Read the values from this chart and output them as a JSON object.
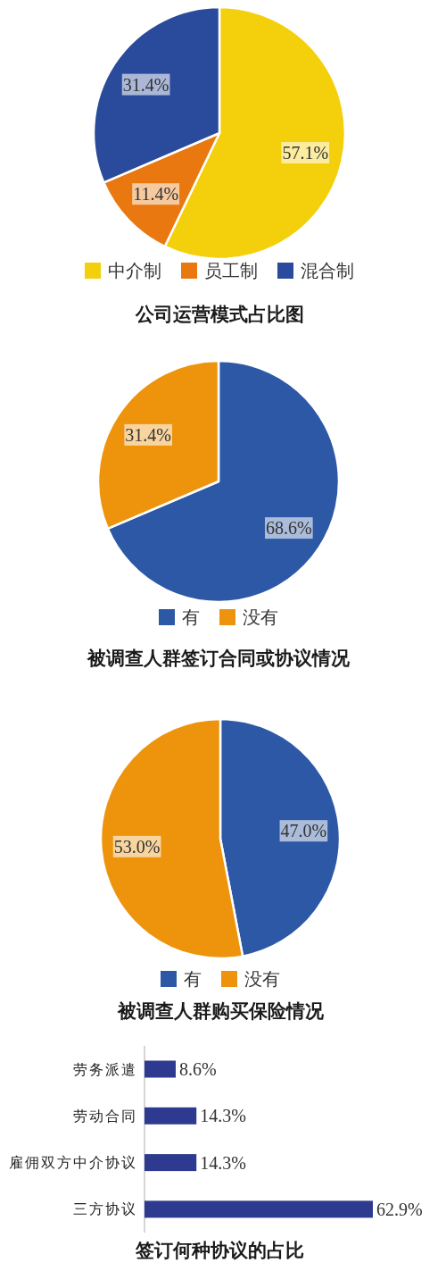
{
  "chart_data": [
    {
      "type": "pie",
      "title": "公司运营模式占比图",
      "categories": [
        "中介制",
        "员工制",
        "混合制"
      ],
      "values": [
        57.1,
        11.4,
        31.4
      ],
      "colors": [
        "#f4d00c",
        "#e8780f",
        "#2a4b9b"
      ],
      "value_labels": [
        "57.1%",
        "11.4%",
        "31.4%"
      ],
      "legend": "bottom"
    },
    {
      "type": "pie",
      "title": "被调查人群签订合同或协议情况",
      "categories": [
        "有",
        "没有"
      ],
      "values": [
        68.6,
        31.4
      ],
      "colors": [
        "#2d58a6",
        "#ee940c"
      ],
      "value_labels": [
        "68.6%",
        "31.4%"
      ],
      "legend": "bottom"
    },
    {
      "type": "pie",
      "title": "被调查人群购买保险情况",
      "categories": [
        "有",
        "没有"
      ],
      "values": [
        47.0,
        53.0
      ],
      "colors": [
        "#2d58a6",
        "#ee940c"
      ],
      "value_labels": [
        "47.0%",
        "53.0%"
      ],
      "legend": "bottom"
    },
    {
      "type": "bar",
      "orientation": "horizontal",
      "title": "签订何种协议的占比",
      "categories": [
        "劳务派遣",
        "劳动合同",
        "雇佣双方中介协议",
        "三方协议"
      ],
      "values": [
        8.6,
        14.3,
        14.3,
        62.9
      ],
      "color": "#2e3a8f",
      "value_labels": [
        "8.6%",
        "14.3%",
        "14.3%",
        "62.9%"
      ]
    }
  ]
}
